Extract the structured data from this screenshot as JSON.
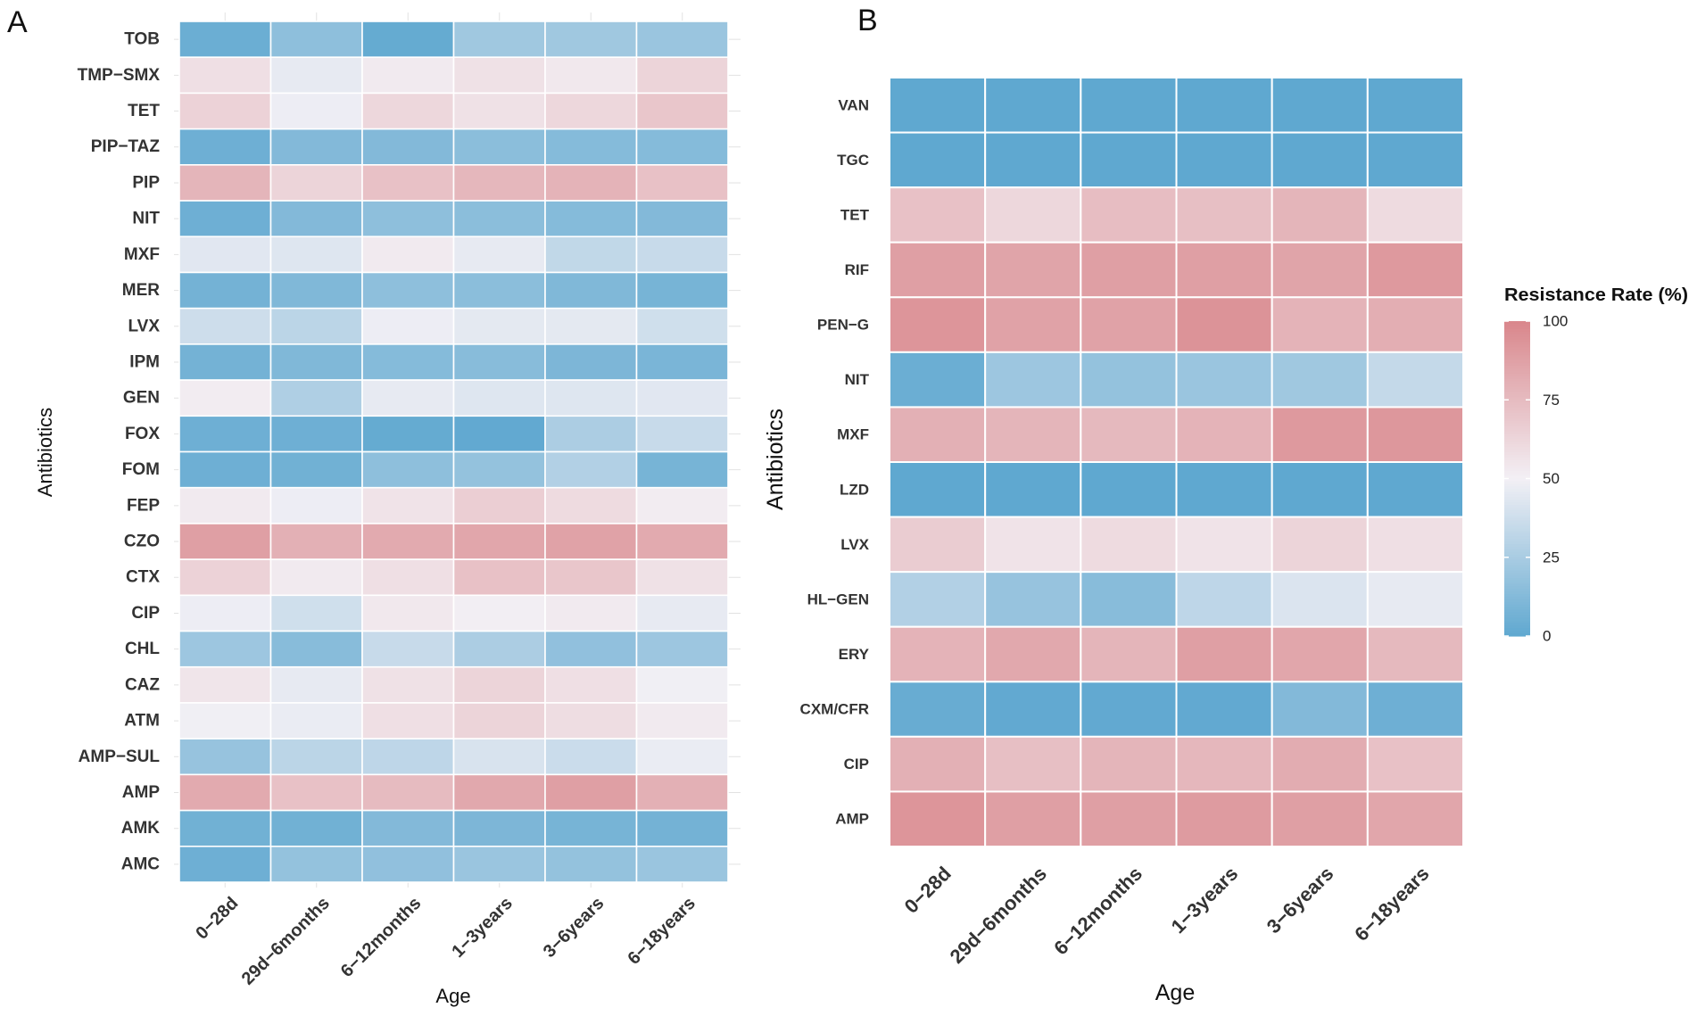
{
  "legend": {
    "title": "Resistance Rate (%)",
    "ticks": [
      100,
      75,
      50,
      25,
      0
    ],
    "range": [
      0,
      100
    ],
    "colors": {
      "low": "#5fa8d0",
      "mid": "#f3f0f5",
      "high": "#d9868b"
    }
  },
  "chart_data": [
    {
      "type": "heatmap",
      "panel": "A",
      "xlabel": "Age",
      "ylabel": "Antibiotics",
      "categories": [
        "0−28d",
        "29d−6months",
        "6−12months",
        "1−3years",
        "3−6years",
        "6−18years"
      ],
      "rows": [
        "TOB",
        "TMP−SMX",
        "TET",
        "PIP−TAZ",
        "PIP",
        "NIT",
        "MXF",
        "MER",
        "LVX",
        "IPM",
        "GEN",
        "FOX",
        "FOM",
        "FEP",
        "CZO",
        "CTX",
        "CIP",
        "CHL",
        "CAZ",
        "ATM",
        "AMP−SUL",
        "AMP",
        "AMK",
        "AMC"
      ],
      "values": [
        [
          4,
          16,
          2,
          22,
          22,
          20
        ],
        [
          58,
          46,
          53,
          57,
          54,
          63
        ],
        [
          64,
          48,
          62,
          57,
          62,
          70
        ],
        [
          5,
          12,
          12,
          15,
          13,
          13
        ],
        [
          78,
          63,
          72,
          77,
          79,
          72
        ],
        [
          5,
          12,
          16,
          15,
          13,
          12
        ],
        [
          44,
          43,
          53,
          46,
          33,
          35
        ],
        [
          7,
          11,
          16,
          15,
          11,
          8
        ],
        [
          37,
          31,
          48,
          45,
          45,
          38
        ],
        [
          7,
          11,
          13,
          14,
          10,
          9
        ],
        [
          52,
          27,
          46,
          43,
          43,
          44
        ],
        [
          5,
          5,
          2,
          1,
          26,
          35
        ],
        [
          5,
          6,
          16,
          18,
          28,
          8
        ],
        [
          53,
          48,
          56,
          66,
          60,
          52
        ],
        [
          88,
          80,
          83,
          85,
          87,
          83
        ],
        [
          64,
          53,
          58,
          72,
          70,
          57
        ],
        [
          48,
          38,
          54,
          51,
          53,
          46
        ],
        [
          21,
          14,
          35,
          26,
          17,
          21
        ],
        [
          55,
          46,
          57,
          63,
          58,
          49
        ],
        [
          49,
          47,
          58,
          63,
          59,
          53
        ],
        [
          19,
          31,
          32,
          41,
          36,
          47
        ],
        [
          83,
          72,
          75,
          84,
          88,
          80
        ],
        [
          6,
          6,
          12,
          10,
          8,
          7
        ],
        [
          5,
          18,
          17,
          20,
          18,
          20
        ]
      ]
    },
    {
      "type": "heatmap",
      "panel": "B",
      "xlabel": "Age",
      "ylabel": "Antibiotics",
      "categories": [
        "0−28d",
        "29d−6months",
        "6−12months",
        "1−3years",
        "3−6years",
        "6−18years"
      ],
      "rows": [
        "VAN",
        "TGC",
        "TET",
        "RIF",
        "PEN−G",
        "NIT",
        "MXF",
        "LZD",
        "LVX",
        "HL−GEN",
        "ERY",
        "CXM/CFR",
        "CIP",
        "AMP"
      ],
      "values": [
        [
          0,
          0,
          0,
          0,
          0,
          0
        ],
        [
          0,
          0,
          0,
          0,
          0,
          0
        ],
        [
          72,
          62,
          74,
          73,
          78,
          60
        ],
        [
          88,
          86,
          88,
          88,
          86,
          91
        ],
        [
          93,
          87,
          87,
          94,
          79,
          81
        ],
        [
          4,
          21,
          18,
          20,
          22,
          34
        ],
        [
          80,
          78,
          76,
          79,
          91,
          92
        ],
        [
          0,
          0,
          0,
          0,
          0,
          0
        ],
        [
          67,
          56,
          60,
          56,
          63,
          58
        ],
        [
          28,
          19,
          14,
          32,
          42,
          46
        ],
        [
          79,
          84,
          78,
          88,
          85,
          76
        ],
        [
          3,
          1,
          1,
          1,
          12,
          5
        ],
        [
          80,
          73,
          78,
          77,
          82,
          72
        ],
        [
          93,
          88,
          88,
          90,
          88,
          85
        ]
      ]
    }
  ]
}
